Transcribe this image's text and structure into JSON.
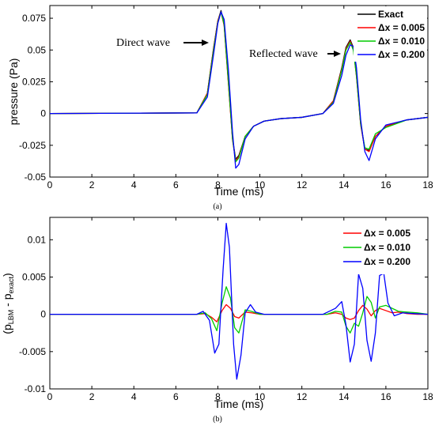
{
  "chart_data": [
    {
      "panel": "(a)",
      "type": "line",
      "xlabel": "Time (ms)",
      "ylabel": "pressure (Pa)",
      "xlim": [
        0,
        18
      ],
      "ylim": [
        -0.05,
        0.085
      ],
      "xticks": [
        0,
        2,
        4,
        6,
        8,
        10,
        12,
        14,
        16,
        18
      ],
      "xtick_labels": [
        "0",
        "2",
        "4",
        "6",
        "8",
        "10",
        "12",
        "14",
        "16",
        "18"
      ],
      "yticks": [
        -0.05,
        -0.025,
        0,
        0.025,
        0.05,
        0.075
      ],
      "ytick_labels": [
        "-0.05",
        "-0.025",
        "0",
        "0.025",
        "0.05",
        "0.075"
      ],
      "grid": false,
      "legend_position": "top-right",
      "annotations": [
        {
          "text": "Direct wave",
          "x": 8.0,
          "y": 0.062,
          "arrow_to": [
            8.0,
            0.062
          ]
        },
        {
          "text": "Reflected wave",
          "x": 14.0,
          "y": 0.051,
          "arrow_to": [
            14.0,
            0.051
          ]
        }
      ],
      "series": [
        {
          "name": "Exact",
          "color": "#000000",
          "x": [
            0,
            7.0,
            7.5,
            7.8,
            8.0,
            8.15,
            8.3,
            8.5,
            8.7,
            8.85,
            9.0,
            9.3,
            9.7,
            10.2,
            11,
            12,
            13.0,
            13.5,
            13.9,
            14.1,
            14.3,
            14.45,
            14.6,
            14.8,
            15.0,
            15.2,
            15.5,
            16.0,
            17.0,
            18
          ],
          "y": [
            0,
            0.0005,
            0.016,
            0.052,
            0.073,
            0.081,
            0.07,
            0.025,
            -0.02,
            -0.036,
            -0.033,
            -0.018,
            -0.01,
            -0.006,
            -0.004,
            -0.003,
            0.0,
            0.01,
            0.036,
            0.052,
            0.058,
            0.052,
            0.03,
            -0.008,
            -0.028,
            -0.029,
            -0.018,
            -0.01,
            -0.005,
            -0.003
          ]
        },
        {
          "name": "Δx = 0.005",
          "color": "#ff0000",
          "x": [
            0,
            7.0,
            7.5,
            7.8,
            8.0,
            8.15,
            8.3,
            8.5,
            8.7,
            8.85,
            9.0,
            9.3,
            9.7,
            10.2,
            11,
            12,
            13.0,
            13.5,
            13.9,
            14.1,
            14.3,
            14.45,
            14.6,
            14.8,
            15.0,
            15.2,
            15.5,
            16.0,
            17.0,
            18
          ],
          "y": [
            0,
            0.0005,
            0.016,
            0.051,
            0.073,
            0.08,
            0.069,
            0.024,
            -0.021,
            -0.037,
            -0.034,
            -0.018,
            -0.01,
            -0.006,
            -0.004,
            -0.003,
            0.0,
            0.01,
            0.035,
            0.051,
            0.057,
            0.051,
            0.029,
            -0.009,
            -0.028,
            -0.03,
            -0.018,
            -0.01,
            -0.005,
            -0.003
          ]
        },
        {
          "name": "Δx = 0.010",
          "color": "#00cc00",
          "x": [
            0,
            7.0,
            7.5,
            7.8,
            8.0,
            8.15,
            8.3,
            8.5,
            8.7,
            8.85,
            9.0,
            9.3,
            9.7,
            10.2,
            11,
            12,
            13.0,
            13.5,
            13.9,
            14.1,
            14.3,
            14.45,
            14.6,
            14.8,
            15.0,
            15.2,
            15.5,
            16.0,
            17.0,
            18
          ],
          "y": [
            0,
            0.0005,
            0.015,
            0.05,
            0.072,
            0.08,
            0.07,
            0.026,
            -0.02,
            -0.038,
            -0.035,
            -0.018,
            -0.01,
            -0.006,
            -0.004,
            -0.003,
            0.0,
            0.009,
            0.034,
            0.05,
            0.056,
            0.05,
            0.03,
            -0.008,
            -0.027,
            -0.028,
            -0.016,
            -0.011,
            -0.005,
            -0.003
          ]
        },
        {
          "name": "Δx = 0.200",
          "color": "#0000ff",
          "x": [
            0,
            7.0,
            7.5,
            7.8,
            8.0,
            8.15,
            8.3,
            8.5,
            8.7,
            8.85,
            9.0,
            9.3,
            9.7,
            10.2,
            11,
            12,
            13.0,
            13.5,
            13.9,
            14.1,
            14.3,
            14.45,
            14.6,
            14.8,
            15.0,
            15.2,
            15.5,
            16.0,
            17.0,
            18
          ],
          "y": [
            0,
            0.0005,
            0.013,
            0.047,
            0.071,
            0.08,
            0.074,
            0.035,
            -0.015,
            -0.043,
            -0.04,
            -0.02,
            -0.01,
            -0.006,
            -0.004,
            -0.003,
            0.0,
            0.008,
            0.03,
            0.046,
            0.054,
            0.053,
            0.036,
            -0.005,
            -0.03,
            -0.037,
            -0.02,
            -0.009,
            -0.005,
            -0.003
          ]
        }
      ],
      "caption": "(a)"
    },
    {
      "panel": "(b)",
      "type": "line",
      "xlabel": "Time (ms)",
      "ylabel_main": "(p",
      "ylabel_sub1": "LBM",
      "ylabel_mid": " - p",
      "ylabel_sub2": "exact",
      "ylabel_end": ")",
      "xlim": [
        0,
        18
      ],
      "ylim": [
        -0.01,
        0.013
      ],
      "xticks": [
        0,
        2,
        4,
        6,
        8,
        10,
        12,
        14,
        16,
        18
      ],
      "xtick_labels": [
        "0",
        "2",
        "4",
        "6",
        "8",
        "10",
        "12",
        "14",
        "16",
        "18"
      ],
      "yticks": [
        -0.01,
        -0.005,
        0,
        0.005,
        0.01
      ],
      "ytick_labels": [
        "-0.01",
        "-0.005",
        "0",
        "0.005",
        "0.01"
      ],
      "grid": false,
      "legend_position": "top-right",
      "series": [
        {
          "name": "Δx = 0.005",
          "color": "#ff0000",
          "x": [
            0,
            7.0,
            7.4,
            7.7,
            7.95,
            8.2,
            8.4,
            8.6,
            8.8,
            9.0,
            9.3,
            9.6,
            10,
            11,
            12,
            13.2,
            13.6,
            13.9,
            14.1,
            14.3,
            14.5,
            14.7,
            14.9,
            15.1,
            15.3,
            15.5,
            15.7,
            16.0,
            16.3,
            16.6,
            17.0,
            17.5,
            18
          ],
          "y": [
            0,
            0.0,
            0.0001,
            -0.0004,
            -0.001,
            0.0005,
            0.0013,
            0.0008,
            -0.0003,
            -0.0005,
            0.0003,
            0.0002,
            0.0,
            0.0,
            0.0,
            0.0,
            0.0002,
            0.0,
            -0.0005,
            -0.0007,
            -0.0005,
            0.0005,
            0.0012,
            0.0007,
            -0.0002,
            0.0005,
            0.0008,
            0.0005,
            0.0002,
            0.0003,
            0.0001,
            0.0,
            0.0
          ]
        },
        {
          "name": "Δx = 0.010",
          "color": "#00cc00",
          "x": [
            0,
            7.0,
            7.4,
            7.7,
            7.95,
            8.2,
            8.4,
            8.6,
            8.8,
            9.0,
            9.3,
            9.6,
            10,
            11,
            12,
            13.2,
            13.6,
            13.9,
            14.1,
            14.3,
            14.5,
            14.7,
            14.9,
            15.1,
            15.3,
            15.5,
            15.7,
            16.0,
            16.3,
            16.6,
            17.0,
            17.5,
            18
          ],
          "y": [
            0,
            0.0,
            0.0002,
            -0.0006,
            -0.0022,
            0.0015,
            0.0037,
            0.0022,
            -0.0018,
            -0.0025,
            0.0006,
            0.0004,
            0.0,
            0.0,
            0.0,
            0.0,
            0.0004,
            0.0003,
            -0.0016,
            -0.0025,
            -0.0012,
            -0.0016,
            0.0002,
            0.0024,
            0.0016,
            -0.0005,
            0.001,
            0.0012,
            0.0008,
            0.0004,
            0.0003,
            0.0002,
            0.0
          ]
        },
        {
          "name": "Δx = 0.200",
          "color": "#0000ff",
          "x": [
            0,
            7.0,
            7.3,
            7.6,
            7.85,
            8.05,
            8.25,
            8.4,
            8.55,
            8.75,
            8.9,
            9.1,
            9.3,
            9.55,
            9.8,
            10.2,
            11,
            12,
            13.0,
            13.6,
            13.9,
            14.1,
            14.3,
            14.5,
            14.7,
            14.9,
            15.1,
            15.3,
            15.5,
            15.7,
            15.9,
            16.1,
            16.4,
            16.8,
            17.3,
            18
          ],
          "y": [
            0,
            0.0,
            0.0004,
            -0.0008,
            -0.0052,
            -0.004,
            0.006,
            0.0122,
            0.009,
            -0.004,
            -0.0087,
            -0.0055,
            0.0002,
            0.0013,
            0.0003,
            0.0,
            0.0,
            0.0,
            0.0,
            0.0008,
            0.0017,
            -0.0014,
            -0.0064,
            -0.004,
            0.0054,
            0.0035,
            -0.0035,
            -0.0063,
            -0.0025,
            0.0052,
            0.0055,
            0.0015,
            -0.0002,
            0.0002,
            0.0001,
            0.0
          ]
        }
      ],
      "caption": "(b)"
    }
  ]
}
